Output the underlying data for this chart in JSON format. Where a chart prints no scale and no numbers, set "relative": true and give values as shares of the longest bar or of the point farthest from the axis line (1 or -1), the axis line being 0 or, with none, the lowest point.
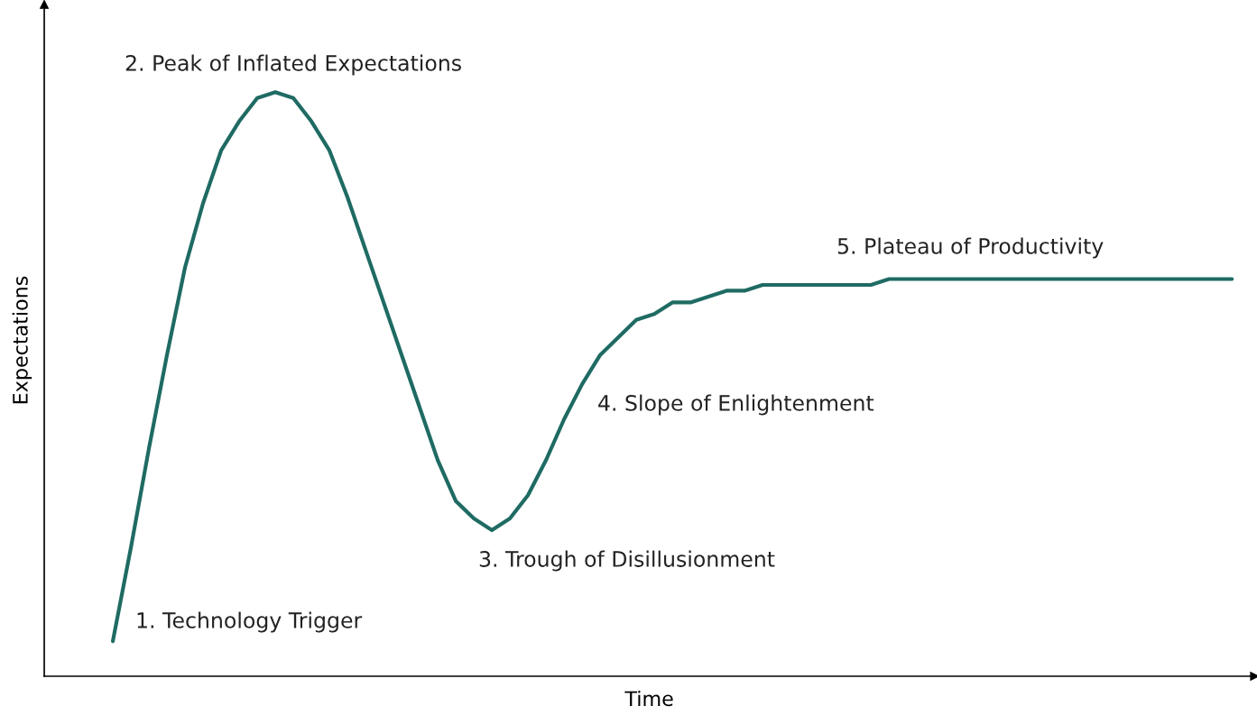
{
  "chart_data": {
    "type": "line",
    "relative": true,
    "xlabel": "Time",
    "ylabel": "Expectations",
    "categories": [
      null,
      null,
      null,
      null,
      null,
      null,
      null,
      null,
      null,
      null,
      null,
      null,
      null,
      null,
      null,
      null,
      null,
      null,
      null,
      null,
      null,
      null,
      null,
      null,
      null,
      null,
      null,
      null,
      null,
      null,
      null,
      null,
      null,
      null,
      null,
      null,
      null,
      null,
      null,
      null,
      null,
      null,
      null,
      null,
      null,
      null,
      null,
      null,
      null,
      null,
      null,
      null,
      null,
      null,
      null,
      null,
      null,
      null,
      null,
      null,
      null,
      null,
      null
    ],
    "series": [
      {
        "color": "#1f6b63",
        "values": [
          0.06,
          0.22,
          0.39,
          0.55,
          0.7,
          0.81,
          0.9,
          0.95,
          0.99,
          1.0,
          0.99,
          0.95,
          0.9,
          0.82,
          0.73,
          0.64,
          0.55,
          0.46,
          0.37,
          0.3,
          0.27,
          0.25,
          0.27,
          0.31,
          0.37,
          0.44,
          0.5,
          0.55,
          0.58,
          0.61,
          0.62,
          0.64,
          0.64,
          0.65,
          0.66,
          0.66,
          0.67,
          0.67,
          0.67,
          0.67,
          0.67,
          0.67,
          0.67,
          0.68,
          0.68,
          0.68,
          0.68,
          0.68,
          0.68,
          0.68,
          0.68,
          0.68,
          0.68,
          0.68,
          0.68,
          0.68,
          0.68,
          0.68,
          0.68,
          0.68,
          0.68,
          0.68,
          0.68
        ]
      }
    ],
    "annotations": [
      "1. Technology Trigger",
      "2. Peak of Inflated Expectations",
      "3. Trough of Disillusionment",
      "4. Slope of Enlightenment",
      "5. Plateau of Productivity"
    ],
    "grid": false,
    "legend": false,
    "marker": "none",
    "line_style": "solid"
  }
}
